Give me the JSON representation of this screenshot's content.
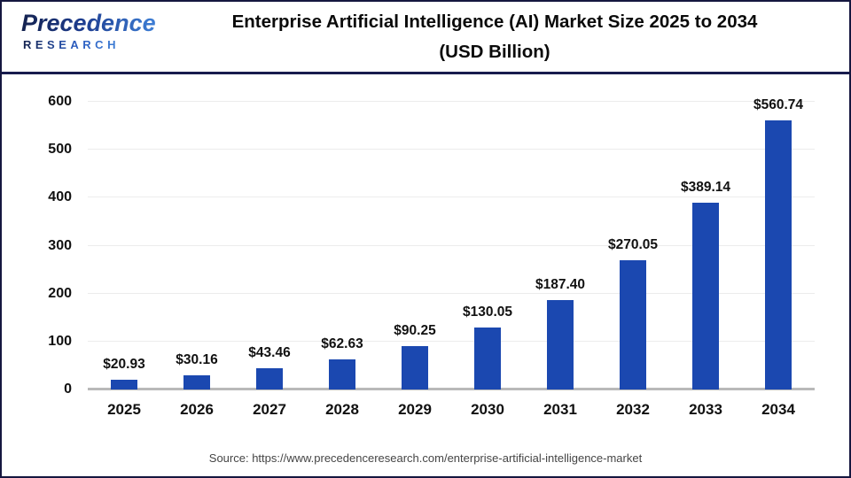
{
  "header": {
    "logo_line1": "Precedence",
    "logo_line2": "RESEARCH",
    "title_line1": "Enterprise Artificial Intelligence (AI) Market Size 2025 to 2034",
    "title_line2": "(USD Billion)"
  },
  "footer": {
    "source": "Source: https://www.precedenceresearch.com/enterprise-artificial-intelligence-market"
  },
  "colors": {
    "bar": "#1b48b0",
    "header_rule": "#181c4e",
    "outer_border": "#15173f",
    "gridline": "#ececec",
    "axis_line": "#b9b9b9"
  },
  "chart_data": {
    "type": "bar",
    "title": "Enterprise Artificial Intelligence (AI) Market Size 2025 to 2034 (USD Billion)",
    "xlabel": "",
    "ylabel": "",
    "categories": [
      "2025",
      "2026",
      "2027",
      "2028",
      "2029",
      "2030",
      "2031",
      "2032",
      "2033",
      "2034"
    ],
    "values": [
      20.93,
      30.16,
      43.46,
      62.63,
      90.25,
      130.05,
      187.4,
      270.05,
      389.14,
      560.74
    ],
    "value_labels": [
      "$20.93",
      "$30.16",
      "$43.46",
      "$62.63",
      "$90.25",
      "$130.05",
      "$187.40",
      "$270.05",
      "$389.14",
      "$560.74"
    ],
    "ylim": [
      0,
      600
    ],
    "yticks": [
      0,
      100,
      200,
      300,
      400,
      500,
      600
    ],
    "grid": true,
    "legend_position": "none"
  }
}
